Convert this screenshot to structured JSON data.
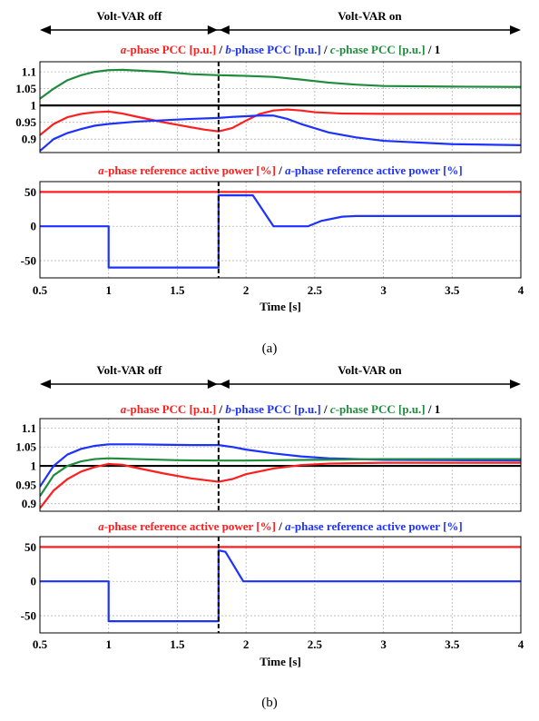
{
  "colors": {
    "red": "#ff1e1e",
    "blue": "#1e32ff",
    "green": "#1e8c3c",
    "black": "#000000",
    "grid": "#b4b4b4"
  },
  "chart_data": [
    {
      "id": "a",
      "caption": "(a)",
      "annotations": {
        "left": "Volt-VAR off",
        "right": "Volt-VAR on",
        "switch_time": 1.8
      },
      "xlabel": "Time [s]",
      "x_ticks": [
        "0.5",
        "1",
        "1.5",
        "2",
        "2.5",
        "3",
        "3.5",
        "4"
      ],
      "xlim": [
        0.5,
        4
      ],
      "plots": [
        {
          "type": "line",
          "title_parts": [
            {
              "text": "a",
              "color": "red",
              "italic": true
            },
            {
              "text": "-phase PCC [p.u.] ",
              "color": "red",
              "italic": false
            },
            {
              "text": "/ ",
              "color": "black",
              "italic": false
            },
            {
              "text": "b",
              "color": "blue",
              "italic": true
            },
            {
              "text": "-phase PCC [p.u.] ",
              "color": "blue",
              "italic": false
            },
            {
              "text": "/ ",
              "color": "black",
              "italic": false
            },
            {
              "text": "c",
              "color": "green",
              "italic": true
            },
            {
              "text": "-phase PCC [p.u.] ",
              "color": "green",
              "italic": false
            },
            {
              "text": "/ 1",
              "color": "black",
              "italic": false
            }
          ],
          "ylim": [
            0.86,
            1.13
          ],
          "y_ticks": [
            0.9,
            0.95,
            1,
            1.05,
            1.1
          ],
          "y_tick_labels": [
            "0.9",
            "0.95",
            "1",
            "1.05",
            "1.1"
          ],
          "series": [
            {
              "color": "green",
              "points": [
                [
                  0.5,
                  1.02
                ],
                [
                  0.6,
                  1.05
                ],
                [
                  0.7,
                  1.075
                ],
                [
                  0.8,
                  1.09
                ],
                [
                  0.9,
                  1.1
                ],
                [
                  1.0,
                  1.105
                ],
                [
                  1.1,
                  1.106
                ],
                [
                  1.2,
                  1.104
                ],
                [
                  1.4,
                  1.1
                ],
                [
                  1.6,
                  1.093
                ],
                [
                  1.8,
                  1.09
                ],
                [
                  2.0,
                  1.088
                ],
                [
                  2.2,
                  1.085
                ],
                [
                  2.4,
                  1.077
                ],
                [
                  2.6,
                  1.068
                ],
                [
                  2.8,
                  1.062
                ],
                [
                  3.0,
                  1.058
                ],
                [
                  3.5,
                  1.056
                ],
                [
                  4.0,
                  1.055
                ]
              ]
            },
            {
              "color": "red",
              "points": [
                [
                  0.5,
                  0.912
                ],
                [
                  0.6,
                  0.945
                ],
                [
                  0.7,
                  0.965
                ],
                [
                  0.8,
                  0.975
                ],
                [
                  0.9,
                  0.98
                ],
                [
                  1.0,
                  0.982
                ],
                [
                  1.1,
                  0.976
                ],
                [
                  1.2,
                  0.967
                ],
                [
                  1.4,
                  0.95
                ],
                [
                  1.6,
                  0.935
                ],
                [
                  1.7,
                  0.928
                ],
                [
                  1.8,
                  0.923
                ],
                [
                  1.9,
                  0.933
                ],
                [
                  2.0,
                  0.955
                ],
                [
                  2.1,
                  0.975
                ],
                [
                  2.2,
                  0.985
                ],
                [
                  2.3,
                  0.988
                ],
                [
                  2.4,
                  0.985
                ],
                [
                  2.5,
                  0.98
                ],
                [
                  2.7,
                  0.976
                ],
                [
                  3.0,
                  0.975
                ],
                [
                  3.5,
                  0.975
                ],
                [
                  4.0,
                  0.975
                ]
              ]
            },
            {
              "color": "blue",
              "points": [
                [
                  0.5,
                  0.865
                ],
                [
                  0.6,
                  0.9
                ],
                [
                  0.7,
                  0.918
                ],
                [
                  0.8,
                  0.93
                ],
                [
                  0.9,
                  0.94
                ],
                [
                  1.0,
                  0.945
                ],
                [
                  1.2,
                  0.952
                ],
                [
                  1.4,
                  0.956
                ],
                [
                  1.6,
                  0.96
                ],
                [
                  1.8,
                  0.963
                ],
                [
                  1.9,
                  0.966
                ],
                [
                  2.0,
                  0.968
                ],
                [
                  2.1,
                  0.97
                ],
                [
                  2.2,
                  0.97
                ],
                [
                  2.3,
                  0.96
                ],
                [
                  2.4,
                  0.945
                ],
                [
                  2.6,
                  0.92
                ],
                [
                  2.8,
                  0.905
                ],
                [
                  3.0,
                  0.895
                ],
                [
                  3.5,
                  0.885
                ],
                [
                  4.0,
                  0.882
                ]
              ]
            },
            {
              "color": "black",
              "points": [
                [
                  0.5,
                  1.0
                ],
                [
                  4.0,
                  1.0
                ]
              ]
            }
          ]
        },
        {
          "type": "line",
          "title_parts": [
            {
              "text": "a",
              "color": "red",
              "italic": true
            },
            {
              "text": "-phase reference active power [%] ",
              "color": "red",
              "italic": false
            },
            {
              "text": "/ ",
              "color": "black",
              "italic": false
            },
            {
              "text": "a",
              "color": "blue",
              "italic": true
            },
            {
              "text": "-phase reference active power [%]",
              "color": "blue",
              "italic": false
            }
          ],
          "ylim": [
            -75,
            65
          ],
          "y_ticks": [
            -50,
            0,
            50
          ],
          "y_tick_labels": [
            "-50",
            "0",
            "50"
          ],
          "series": [
            {
              "color": "red",
              "points": [
                [
                  0.5,
                  50
                ],
                [
                  4.0,
                  50
                ]
              ]
            },
            {
              "color": "blue",
              "points": [
                [
                  0.5,
                  0
                ],
                [
                  1.0,
                  0
                ],
                [
                  1.0,
                  -60
                ],
                [
                  1.8,
                  -60
                ],
                [
                  1.8,
                  45
                ],
                [
                  2.05,
                  45
                ],
                [
                  2.2,
                  0
                ],
                [
                  2.45,
                  0
                ],
                [
                  2.55,
                  8
                ],
                [
                  2.7,
                  14
                ],
                [
                  2.8,
                  15
                ],
                [
                  4.0,
                  15
                ]
              ]
            }
          ]
        }
      ]
    },
    {
      "id": "b",
      "caption": "(b)",
      "annotations": {
        "left": "Volt-VAR off",
        "right": "Volt-VAR on",
        "switch_time": 1.8
      },
      "xlabel": "Time [s]",
      "x_ticks": [
        "0.5",
        "1",
        "1.5",
        "2",
        "2.5",
        "3",
        "3.5",
        "4"
      ],
      "xlim": [
        0.5,
        4
      ],
      "plots": [
        {
          "type": "line",
          "title_parts": [
            {
              "text": "a",
              "color": "red",
              "italic": true
            },
            {
              "text": "-phase PCC [p.u.] ",
              "color": "red",
              "italic": false
            },
            {
              "text": "/ ",
              "color": "black",
              "italic": false
            },
            {
              "text": "b",
              "color": "blue",
              "italic": true
            },
            {
              "text": "-phase PCC [p.u.] ",
              "color": "blue",
              "italic": false
            },
            {
              "text": "/ ",
              "color": "black",
              "italic": false
            },
            {
              "text": "c",
              "color": "green",
              "italic": true
            },
            {
              "text": "-phase PCC [p.u.] ",
              "color": "green",
              "italic": false
            },
            {
              "text": "/ 1",
              "color": "black",
              "italic": false
            }
          ],
          "ylim": [
            0.88,
            1.125
          ],
          "y_ticks": [
            0.9,
            0.95,
            1,
            1.05,
            1.1
          ],
          "y_tick_labels": [
            "0.9",
            "0.95",
            "1",
            "1.05",
            "1.1"
          ],
          "series": [
            {
              "color": "black",
              "points": [
                [
                  0.5,
                  1.0
                ],
                [
                  4.0,
                  1.0
                ]
              ]
            },
            {
              "color": "blue",
              "points": [
                [
                  0.5,
                  0.945
                ],
                [
                  0.6,
                  1.0
                ],
                [
                  0.7,
                  1.03
                ],
                [
                  0.8,
                  1.045
                ],
                [
                  0.9,
                  1.053
                ],
                [
                  1.0,
                  1.057
                ],
                [
                  1.2,
                  1.057
                ],
                [
                  1.4,
                  1.056
                ],
                [
                  1.6,
                  1.055
                ],
                [
                  1.8,
                  1.055
                ],
                [
                  1.9,
                  1.05
                ],
                [
                  2.0,
                  1.043
                ],
                [
                  2.2,
                  1.033
                ],
                [
                  2.4,
                  1.025
                ],
                [
                  2.6,
                  1.02
                ],
                [
                  3.0,
                  1.016
                ],
                [
                  3.5,
                  1.015
                ],
                [
                  4.0,
                  1.014
                ]
              ]
            },
            {
              "color": "green",
              "points": [
                [
                  0.5,
                  0.92
                ],
                [
                  0.6,
                  0.975
                ],
                [
                  0.7,
                  1.0
                ],
                [
                  0.8,
                  1.012
                ],
                [
                  0.9,
                  1.018
                ],
                [
                  1.0,
                  1.02
                ],
                [
                  1.2,
                  1.018
                ],
                [
                  1.5,
                  1.015
                ],
                [
                  1.8,
                  1.014
                ],
                [
                  2.0,
                  1.014
                ],
                [
                  2.5,
                  1.016
                ],
                [
                  3.0,
                  1.018
                ],
                [
                  4.0,
                  1.018
                ]
              ]
            },
            {
              "color": "red",
              "points": [
                [
                  0.5,
                  0.888
                ],
                [
                  0.6,
                  0.935
                ],
                [
                  0.7,
                  0.965
                ],
                [
                  0.8,
                  0.985
                ],
                [
                  0.9,
                  0.997
                ],
                [
                  1.0,
                  1.005
                ],
                [
                  1.1,
                  1.003
                ],
                [
                  1.2,
                  0.995
                ],
                [
                  1.4,
                  0.98
                ],
                [
                  1.6,
                  0.967
                ],
                [
                  1.8,
                  0.958
                ],
                [
                  1.9,
                  0.965
                ],
                [
                  2.0,
                  0.978
                ],
                [
                  2.2,
                  0.993
                ],
                [
                  2.4,
                  1.002
                ],
                [
                  2.6,
                  1.006
                ],
                [
                  3.0,
                  1.008
                ],
                [
                  4.0,
                  1.008
                ]
              ]
            }
          ]
        },
        {
          "type": "line",
          "title_parts": [
            {
              "text": "a",
              "color": "red",
              "italic": true
            },
            {
              "text": "-phase reference active power [%] ",
              "color": "red",
              "italic": false
            },
            {
              "text": "/ ",
              "color": "black",
              "italic": false
            },
            {
              "text": "a",
              "color": "blue",
              "italic": true
            },
            {
              "text": "-phase reference active power [%]",
              "color": "blue",
              "italic": false
            }
          ],
          "ylim": [
            -75,
            65
          ],
          "y_ticks": [
            -50,
            0,
            50
          ],
          "y_tick_labels": [
            "-50",
            "0",
            "50"
          ],
          "series": [
            {
              "color": "red",
              "points": [
                [
                  0.5,
                  50
                ],
                [
                  4.0,
                  50
                ]
              ]
            },
            {
              "color": "blue",
              "points": [
                [
                  0.5,
                  0
                ],
                [
                  1.0,
                  0
                ],
                [
                  1.0,
                  -58
                ],
                [
                  1.8,
                  -58
                ],
                [
                  1.8,
                  45
                ],
                [
                  1.85,
                  43
                ],
                [
                  1.98,
                  0
                ],
                [
                  4.0,
                  0
                ]
              ]
            }
          ]
        }
      ]
    }
  ]
}
